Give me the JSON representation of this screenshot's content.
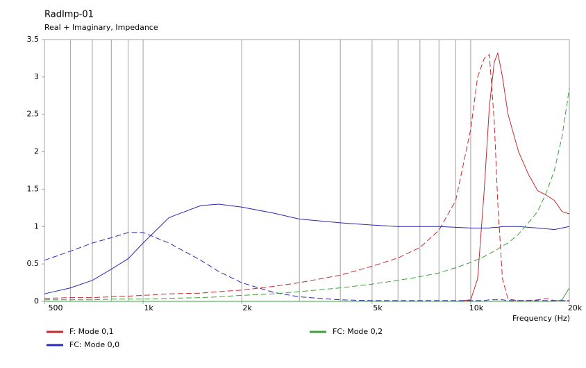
{
  "chart_data": {
    "type": "line",
    "title": "RadImp-01",
    "subtitle": "Real + Imaginary, Impedance",
    "x_label": "Frequency  (Hz)",
    "log_x": true,
    "xlim": [
      500,
      20000
    ],
    "xticks": [
      500,
      {
        "value": 1000,
        "label": "1k"
      },
      {
        "value": 2000,
        "label": "2k"
      },
      {
        "value": 5000,
        "label": "5k"
      },
      {
        "value": 10000,
        "label": "10k"
      },
      {
        "value": 20000,
        "label": "20k"
      }
    ],
    "xgrid": [
      600,
      700,
      800,
      900,
      1000,
      2000,
      3000,
      4000,
      5000,
      6000,
      7000,
      8000,
      9000,
      10000
    ],
    "ylim": [
      0,
      3.5
    ],
    "yticks": [
      0,
      0.5,
      1,
      1.5,
      2,
      2.5,
      3,
      3.5
    ],
    "x": [
      500,
      600,
      700,
      800,
      900,
      1000,
      1200,
      1500,
      1700,
      2000,
      2500,
      3000,
      4000,
      5000,
      6000,
      7000,
      8000,
      9000,
      10000,
      10500,
      11000,
      11400,
      11800,
      12100,
      12500,
      13000,
      14000,
      15000,
      16000,
      17000,
      18000,
      19000,
      20000
    ],
    "series": [
      {
        "name": "F: Mode 0,1",
        "color": "#c82828",
        "real": [
          0,
          0,
          0,
          0,
          0,
          0,
          0,
          0,
          0,
          0,
          0,
          0,
          0,
          0,
          0,
          0,
          0,
          0,
          0.02,
          0.3,
          1.5,
          2.6,
          3.2,
          3.32,
          3.0,
          2.5,
          2.0,
          1.7,
          1.48,
          1.42,
          1.35,
          1.2,
          1.17
        ],
        "imag": [
          0.04,
          0.05,
          0.05,
          0.06,
          0.07,
          0.08,
          0.1,
          0.11,
          0.13,
          0.15,
          0.2,
          0.25,
          0.35,
          0.47,
          0.58,
          0.72,
          0.95,
          1.35,
          2.3,
          3.0,
          3.25,
          3.3,
          2.4,
          1.3,
          0.3,
          0.03,
          0.01,
          0.01,
          0.02,
          0.04,
          0.01,
          0.01,
          0.01
        ]
      },
      {
        "name": "FC: Mode 0,0",
        "color": "#2828b4",
        "real": [
          0.1,
          0.18,
          0.28,
          0.43,
          0.57,
          0.78,
          1.12,
          1.28,
          1.3,
          1.26,
          1.18,
          1.1,
          1.05,
          1.02,
          1.0,
          1.0,
          1.0,
          0.99,
          0.98,
          0.98,
          0.98,
          0.98,
          0.99,
          0.99,
          1.0,
          1.0,
          1.0,
          0.99,
          0.98,
          0.97,
          0.96,
          0.98,
          1.0
        ],
        "imag": [
          0.55,
          0.67,
          0.78,
          0.85,
          0.92,
          0.92,
          0.78,
          0.55,
          0.4,
          0.25,
          0.12,
          0.06,
          0.02,
          0.01,
          0.01,
          0.01,
          0.01,
          0.01,
          0.01,
          0.01,
          0.01,
          0.02,
          0.02,
          0.02,
          0.02,
          0.01,
          0.01,
          0.01,
          0.01,
          0.01,
          0.01,
          0.01,
          0.01
        ]
      },
      {
        "name": "FC: Mode 0,2",
        "color": "#3ca03c",
        "real": [
          0,
          0,
          0,
          0,
          0,
          0,
          0,
          0,
          0,
          0,
          0,
          0,
          0,
          0,
          0,
          0,
          0,
          0,
          0,
          0,
          0,
          0,
          0,
          0,
          0,
          0,
          0,
          0,
          0,
          0,
          0,
          0.02,
          0.18
        ],
        "imag": [
          0.02,
          0.02,
          0.02,
          0.03,
          0.03,
          0.03,
          0.04,
          0.05,
          0.06,
          0.08,
          0.1,
          0.13,
          0.18,
          0.23,
          0.28,
          0.33,
          0.38,
          0.45,
          0.52,
          0.56,
          0.6,
          0.64,
          0.67,
          0.7,
          0.74,
          0.78,
          0.9,
          1.05,
          1.2,
          1.45,
          1.75,
          2.2,
          2.85
        ]
      }
    ]
  }
}
